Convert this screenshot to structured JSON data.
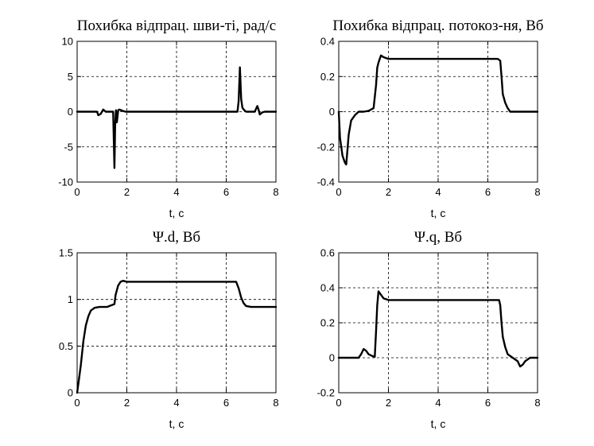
{
  "chart_data": [
    {
      "type": "line",
      "title": "Похибка відпрац. шви-ті, рад/с",
      "xlabel": "t, c",
      "ylabel": "",
      "xlim": [
        0,
        8
      ],
      "ylim": [
        -10,
        10
      ],
      "xticks": [
        "0",
        "2",
        "4",
        "6",
        "8"
      ],
      "yticks": [
        "-10",
        "-5",
        "0",
        "5",
        "10"
      ],
      "grid": true,
      "series": [
        {
          "x": [
            0,
            0.8,
            0.85,
            0.95,
            1.05,
            1.15,
            1.3,
            1.45,
            1.5,
            1.53,
            1.56,
            1.6,
            1.65,
            1.7,
            1.85,
            1.95,
            2.1,
            4,
            6.45,
            6.5,
            6.55,
            6.6,
            6.65,
            6.7,
            6.8,
            6.9,
            7.0,
            7.15,
            7.25,
            7.3,
            7.35,
            7.45,
            7.55,
            8
          ],
          "y": [
            0,
            0,
            -0.5,
            -0.3,
            0.3,
            0,
            0,
            0,
            -8,
            -2,
            0.2,
            -1.5,
            0.2,
            0.3,
            0.1,
            0,
            0,
            0,
            0,
            1.5,
            6.3,
            1.8,
            0.6,
            0.3,
            0,
            0,
            0,
            0,
            0.8,
            0.3,
            -0.4,
            -0.1,
            0,
            0
          ]
        }
      ]
    },
    {
      "type": "line",
      "title": "Похибка відпрац. потокоз-ня, Вб",
      "xlabel": "t, c",
      "ylabel": "",
      "xlim": [
        0,
        8
      ],
      "ylim": [
        -0.4,
        0.4
      ],
      "xticks": [
        "0",
        "2",
        "4",
        "6",
        "8"
      ],
      "yticks": [
        "-0.4",
        "-0.2",
        "0",
        "0.2",
        "0.4"
      ],
      "grid": true,
      "series": [
        {
          "x": [
            0,
            0.05,
            0.15,
            0.25,
            0.3,
            0.35,
            0.4,
            0.5,
            0.65,
            0.8,
            1.0,
            1.2,
            1.4,
            1.5,
            1.55,
            1.6,
            1.7,
            1.8,
            2.0,
            2.5,
            4,
            6.4,
            6.5,
            6.55,
            6.6,
            6.7,
            6.8,
            6.9,
            7.0,
            7.2,
            7.5,
            8
          ],
          "y": [
            0,
            -0.15,
            -0.25,
            -0.29,
            -0.3,
            -0.22,
            -0.13,
            -0.05,
            -0.02,
            0,
            0,
            0.005,
            0.02,
            0.15,
            0.25,
            0.28,
            0.32,
            0.31,
            0.3,
            0.3,
            0.3,
            0.3,
            0.29,
            0.2,
            0.1,
            0.05,
            0.02,
            0,
            0,
            0,
            0,
            0
          ]
        }
      ]
    },
    {
      "type": "line",
      "title": "Ψ.d, Вб",
      "xlabel": "t, c",
      "ylabel": "",
      "xlim": [
        0,
        8
      ],
      "ylim": [
        0,
        1.5
      ],
      "xticks": [
        "0",
        "2",
        "4",
        "6",
        "8"
      ],
      "yticks": [
        "0",
        "0.5",
        "1",
        "1.5"
      ],
      "grid": true,
      "series": [
        {
          "x": [
            0,
            0.05,
            0.15,
            0.25,
            0.35,
            0.45,
            0.55,
            0.7,
            0.9,
            1.2,
            1.5,
            1.55,
            1.65,
            1.75,
            1.85,
            2.0,
            4,
            6.4,
            6.5,
            6.6,
            6.7,
            6.8,
            7.0,
            7.5,
            8
          ],
          "y": [
            0,
            0.1,
            0.3,
            0.55,
            0.72,
            0.82,
            0.88,
            0.91,
            0.92,
            0.92,
            0.95,
            1.05,
            1.15,
            1.19,
            1.2,
            1.19,
            1.19,
            1.19,
            1.12,
            1.02,
            0.96,
            0.93,
            0.92,
            0.92,
            0.92
          ]
        }
      ]
    },
    {
      "type": "line",
      "title": "Ψ.q, Вб",
      "xlabel": "t, c",
      "ylabel": "",
      "xlim": [
        0,
        8
      ],
      "ylim": [
        -0.2,
        0.6
      ],
      "xticks": [
        "0",
        "2",
        "4",
        "6",
        "8"
      ],
      "yticks": [
        "-0.2",
        "0",
        "0.2",
        "0.4",
        "0.6"
      ],
      "grid": true,
      "series": [
        {
          "x": [
            0,
            0.8,
            0.9,
            1.0,
            1.1,
            1.2,
            1.35,
            1.45,
            1.5,
            1.55,
            1.6,
            1.7,
            1.8,
            2.0,
            4,
            6.45,
            6.5,
            6.55,
            6.6,
            6.7,
            6.8,
            7.0,
            7.2,
            7.3,
            7.4,
            7.5,
            7.6,
            7.7,
            8
          ],
          "y": [
            0,
            0,
            0.02,
            0.05,
            0.04,
            0.02,
            0.01,
            0.005,
            0.15,
            0.3,
            0.38,
            0.36,
            0.34,
            0.33,
            0.33,
            0.33,
            0.3,
            0.2,
            0.12,
            0.06,
            0.02,
            0,
            -0.02,
            -0.05,
            -0.04,
            -0.02,
            -0.01,
            0,
            0
          ]
        }
      ]
    }
  ]
}
